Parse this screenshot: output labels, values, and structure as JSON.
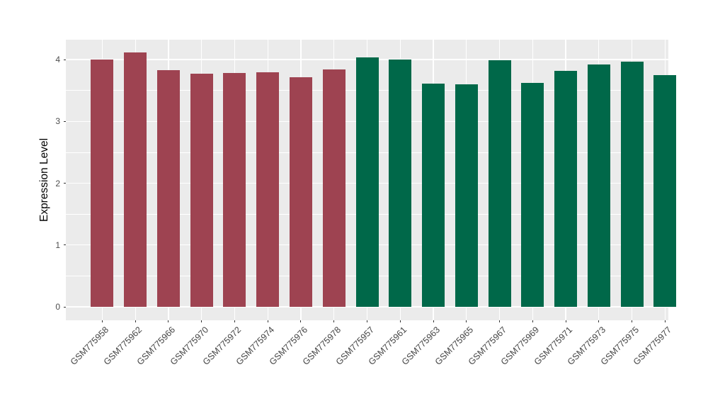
{
  "chart_data": {
    "type": "bar",
    "title": "",
    "xlabel": "",
    "ylabel": "Expression Level",
    "ylim": [
      0,
      4.32
    ],
    "yticks_major": [
      0,
      1,
      2,
      3,
      4
    ],
    "yticks_minor": [
      0.5,
      1.5,
      2.5,
      3.5
    ],
    "legend": "none",
    "grid": {
      "horizontal_major": true,
      "horizontal_minor": true,
      "vertical_major_at_categories": true
    },
    "categories": [
      "GSM775958",
      "GSM775962",
      "GSM775966",
      "GSM775970",
      "GSM775972",
      "GSM775974",
      "GSM775976",
      "GSM775978",
      "GSM775957",
      "GSM775961",
      "GSM775963",
      "GSM775965",
      "GSM775967",
      "GSM775969",
      "GSM775971",
      "GSM775973",
      "GSM775975",
      "GSM775977"
    ],
    "values": [
      4.0,
      4.11,
      3.83,
      3.77,
      3.78,
      3.79,
      3.71,
      3.84,
      4.03,
      4.0,
      3.61,
      3.6,
      3.99,
      3.62,
      3.82,
      3.92,
      3.96,
      3.75
    ],
    "bar_colors": [
      "#9E4351",
      "#9E4351",
      "#9E4351",
      "#9E4351",
      "#9E4351",
      "#9E4351",
      "#9E4351",
      "#9E4351",
      "#006849",
      "#006849",
      "#006849",
      "#006849",
      "#006849",
      "#006849",
      "#006849",
      "#006849",
      "#006849",
      "#006849"
    ]
  },
  "style": {
    "panel_bg": "#EBEBEB",
    "grid_color": "#FFFFFF",
    "tick_mark_color": "#333333",
    "tick_label_color": "#4D4D4D",
    "axis_title_color": "#000000",
    "group_color_left": "#9E4351",
    "group_color_right": "#006849"
  }
}
